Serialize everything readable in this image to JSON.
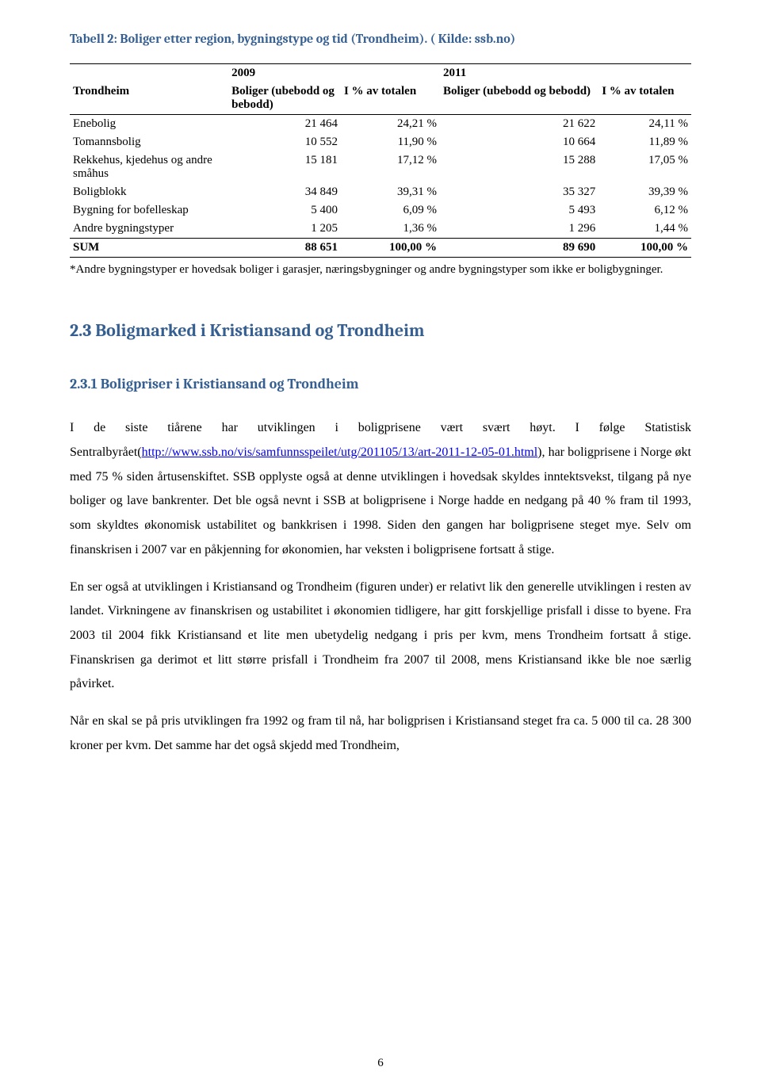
{
  "table": {
    "title": "Tabell 2: Boliger etter region, bygningstype og tid (Trondheim). ( Kilde: ssb.no)",
    "year_a": "2009",
    "year_b": "2011",
    "col_label_a": "Boliger (ubebodd og bebodd)",
    "col_label_b": "I % av totalen",
    "col_label_c": "Boliger (ubebodd og bebodd)",
    "col_label_d": "I % av totalen",
    "region_label": "Trondheim",
    "columns": [
      "",
      "2009 Boliger (ubebodd og bebodd)",
      "I % av totalen",
      "2011 Boliger (ubebodd og bebodd)",
      "I % av totalen"
    ],
    "rows": [
      {
        "label": "Enebolig",
        "v1": "21 464",
        "p1": "24,21 %",
        "v2": "21 622",
        "p2": "24,11 %"
      },
      {
        "label": "Tomannsbolig",
        "v1": "10 552",
        "p1": "11,90 %",
        "v2": "10 664",
        "p2": "11,89 %"
      },
      {
        "label": "Rekkehus, kjedehus og andre småhus",
        "v1": "15 181",
        "p1": "17,12 %",
        "v2": "15 288",
        "p2": "17,05 %"
      },
      {
        "label": "Boligblokk",
        "v1": "34 849",
        "p1": "39,31 %",
        "v2": "35 327",
        "p2": "39,39 %"
      },
      {
        "label": "Bygning for bofelleskap",
        "v1": "5 400",
        "p1": "6,09 %",
        "v2": "5 493",
        "p2": "6,12 %"
      },
      {
        "label": "Andre bygningstyper",
        "v1": "1 205",
        "p1": "1,36 %",
        "v2": "1 296",
        "p2": "1,44 %"
      }
    ],
    "sum": {
      "label": "SUM",
      "v1": "88 651",
      "p1": "100,00 %",
      "v2": "89 690",
      "p2": "100,00 %"
    },
    "footnote": "*Andre bygningstyper er hovedsak boliger i garasjer, næringsbygninger og andre bygningstyper som ikke er boligbygninger."
  },
  "headings": {
    "h2": "2.3 Boligmarked i Kristiansand og Trondheim",
    "h3": "2.3.1 Boligpriser i Kristiansand og Trondheim"
  },
  "paragraphs": {
    "p1a": "I de siste tiårene har utviklingen i boligprisene vært svært høyt. I følge Statistisk Sentralbyrået(",
    "p1_link": "http://www.ssb.no/vis/samfunnsspeilet/utg/201105/13/art-2011-12-05-01.html",
    "p1b": "), har boligprisene i Norge økt med 75 % siden årtusenskiftet. SSB opplyste også at denne utviklingen i hovedsak skyldes inntektsvekst, tilgang på nye boliger og lave bankrenter. Det ble også nevnt i SSB at boligprisene i Norge hadde en nedgang på 40 % fram til 1993, som skyldtes økonomisk ustabilitet og bankkrisen i 1998. Siden den gangen har boligprisene steget mye. Selv om finanskrisen i 2007 var en påkjenning for økonomien, har veksten i boligprisene fortsatt å stige.",
    "p2": "En ser også at utviklingen i Kristiansand og Trondheim (figuren under) er relativt lik den generelle utviklingen i resten av landet. Virkningene av finanskrisen og ustabilitet i økonomien tidligere, har gitt forskjellige prisfall i disse to byene. Fra 2003 til 2004 fikk Kristiansand et lite men ubetydelig nedgang i pris per kvm, mens Trondheim fortsatt å stige. Finanskrisen ga derimot et litt større prisfall i Trondheim fra 2007 til 2008, mens Kristiansand ikke ble noe særlig påvirket.",
    "p3": "Når en skal se på pris utviklingen fra 1992 og fram til nå, har boligprisen i Kristiansand steget fra ca. 5 000 til ca. 28 300 kroner per kvm. Det samme har det også skjedd med Trondheim,"
  },
  "page_number": "6",
  "colors": {
    "heading_color": "#365f91",
    "link_color": "#0000ee",
    "text_color": "#000000",
    "border_color": "#000000",
    "background": "#ffffff"
  },
  "typography": {
    "body_font": "Times New Roman",
    "heading_font": "Cambria",
    "body_size_pt": 12,
    "h2_size_pt": 16,
    "h3_size_pt": 13,
    "table_title_size_pt": 12
  }
}
